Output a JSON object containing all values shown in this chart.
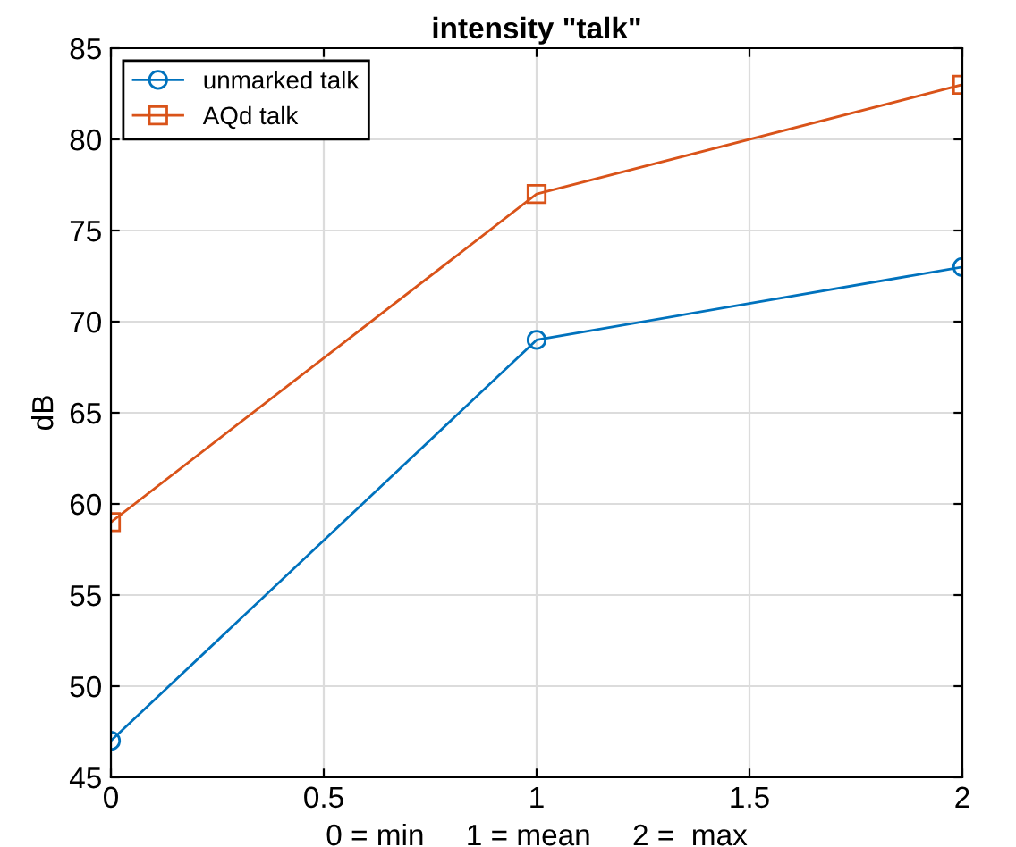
{
  "chart_data": {
    "type": "line",
    "title": "intensity \"talk\"",
    "xlabel": "0 = min     1 = mean     2 =  max",
    "ylabel": "dB",
    "x": [
      0,
      1,
      2
    ],
    "series": [
      {
        "name": "unmarked talk",
        "color": "#0072bd",
        "marker": "circle",
        "values": [
          47,
          69,
          73
        ]
      },
      {
        "name": "AQd talk",
        "color": "#d95319",
        "marker": "square",
        "values": [
          59,
          77,
          83
        ]
      }
    ],
    "xlim": [
      0,
      2
    ],
    "xticks": [
      0,
      0.5,
      1,
      1.5,
      2
    ],
    "ylim": [
      45,
      85
    ],
    "yticks": [
      45,
      50,
      55,
      60,
      65,
      70,
      75,
      80,
      85
    ],
    "grid": true,
    "legend": "top left",
    "line_style": "solid"
  }
}
